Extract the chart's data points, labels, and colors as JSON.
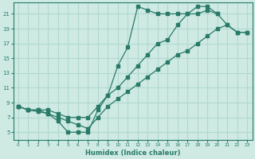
{
  "xlabel": "Humidex (Indice chaleur)",
  "bg_color": "#ceeae3",
  "grid_color": "#b0d8d0",
  "line_color": "#2a7a6a",
  "xlim": [
    -0.5,
    23.5
  ],
  "ylim": [
    4.0,
    22.5
  ],
  "xticks": [
    0,
    1,
    2,
    3,
    4,
    5,
    6,
    7,
    8,
    9,
    10,
    11,
    12,
    13,
    14,
    15,
    16,
    17,
    18,
    19,
    20,
    21,
    22,
    23
  ],
  "yticks": [
    5,
    7,
    9,
    11,
    13,
    15,
    17,
    19,
    21
  ],
  "curve_dashed_x": [
    0,
    1,
    2,
    3,
    4,
    5,
    6,
    7,
    8,
    9,
    10,
    11,
    12,
    13,
    14,
    15,
    16,
    17,
    18,
    19,
    20
  ],
  "curve_dashed_y": [
    8.5,
    8.0,
    7.8,
    7.5,
    6.5,
    5.0,
    5.0,
    5.0,
    8.0,
    10.0,
    14.0,
    16.5,
    22.0,
    21.5,
    21.0,
    21.0,
    21.0,
    21.0,
    21.0,
    21.5,
    21.0
  ],
  "curve_lower_x": [
    0,
    1,
    2,
    3,
    4,
    5,
    6,
    7,
    8,
    9,
    10,
    11,
    12,
    13,
    14,
    15,
    16,
    17,
    18,
    19,
    20,
    21,
    22,
    23
  ],
  "curve_lower_y": [
    8.5,
    8.0,
    8.0,
    7.5,
    7.0,
    6.5,
    6.0,
    5.5,
    7.0,
    8.5,
    9.5,
    10.5,
    11.5,
    12.5,
    13.5,
    14.5,
    15.5,
    16.0,
    17.0,
    18.0,
    19.0,
    19.5,
    18.5,
    18.5
  ],
  "curve_upper_x": [
    0,
    1,
    2,
    3,
    4,
    5,
    6,
    7,
    8,
    9,
    10,
    11,
    12,
    13,
    14,
    15,
    16,
    17,
    18,
    19,
    20,
    21,
    22,
    23
  ],
  "curve_upper_y": [
    8.5,
    8.0,
    8.0,
    8.0,
    7.5,
    7.0,
    7.0,
    7.0,
    8.5,
    10.0,
    11.0,
    12.5,
    14.0,
    15.5,
    17.0,
    17.5,
    19.5,
    21.0,
    22.0,
    22.0,
    21.0,
    19.5,
    18.5,
    18.5
  ]
}
